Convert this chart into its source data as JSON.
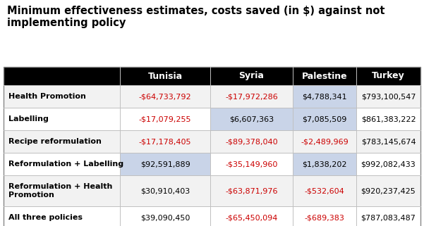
{
  "title": "Minimum effectiveness estimates, costs saved (in $) against not\nimplementing policy",
  "columns": [
    "",
    "Tunisia",
    "Syria",
    "Palestine",
    "Turkey"
  ],
  "rows": [
    {
      "label": "Health Promotion",
      "values": [
        "-$64,733,792",
        "-$17,972,286",
        "$4,788,341",
        "$793,100,547"
      ],
      "colors": [
        "#cc0000",
        "#cc0000",
        "#000000",
        "#000000"
      ],
      "cell_bg": [
        "#ffffff",
        "#ffffff",
        "#c9d4e8",
        "#ffffff"
      ]
    },
    {
      "label": "Labelling",
      "values": [
        "-$17,079,255",
        "$6,607,363",
        "$7,085,509",
        "$861,383,222"
      ],
      "colors": [
        "#cc0000",
        "#000000",
        "#000000",
        "#000000"
      ],
      "cell_bg": [
        "#ffffff",
        "#c9d4e8",
        "#c9d4e8",
        "#ffffff"
      ]
    },
    {
      "label": "Recipe reformulation",
      "values": [
        "-$17,178,405",
        "-$89,378,040",
        "-$2,489,969",
        "$783,145,674"
      ],
      "colors": [
        "#cc0000",
        "#cc0000",
        "#cc0000",
        "#000000"
      ],
      "cell_bg": [
        "#ffffff",
        "#ffffff",
        "#ffffff",
        "#ffffff"
      ]
    },
    {
      "label": "Reformulation + Labelling",
      "values": [
        "$92,591,889",
        "-$35,149,960",
        "$1,838,202",
        "$992,082,433"
      ],
      "colors": [
        "#000000",
        "#cc0000",
        "#000000",
        "#000000"
      ],
      "cell_bg": [
        "#c9d4e8",
        "#ffffff",
        "#c9d4e8",
        "#ffffff"
      ]
    },
    {
      "label": "Reformulation + Health\nPromotion",
      "values": [
        "$30,910,403",
        "-$63,871,976",
        "-$532,604",
        "$920,237,425"
      ],
      "colors": [
        "#000000",
        "#cc0000",
        "#cc0000",
        "#000000"
      ],
      "cell_bg": [
        "#ffffff",
        "#ffffff",
        "#ffffff",
        "#ffffff"
      ]
    },
    {
      "label": "All three policies",
      "values": [
        "$39,090,450",
        "-$65,450,094",
        "-$689,383",
        "$787,083,487"
      ],
      "colors": [
        "#000000",
        "#cc0000",
        "#cc0000",
        "#000000"
      ],
      "cell_bg": [
        "#ffffff",
        "#ffffff",
        "#ffffff",
        "#ffffff"
      ]
    }
  ],
  "header_bg": "#000000",
  "header_fg": "#ffffff",
  "figure_bg": "#ffffff",
  "border_color": "#a0a0a0",
  "row_alt_bg": "#f2f2f2",
  "row_white_bg": "#ffffff"
}
